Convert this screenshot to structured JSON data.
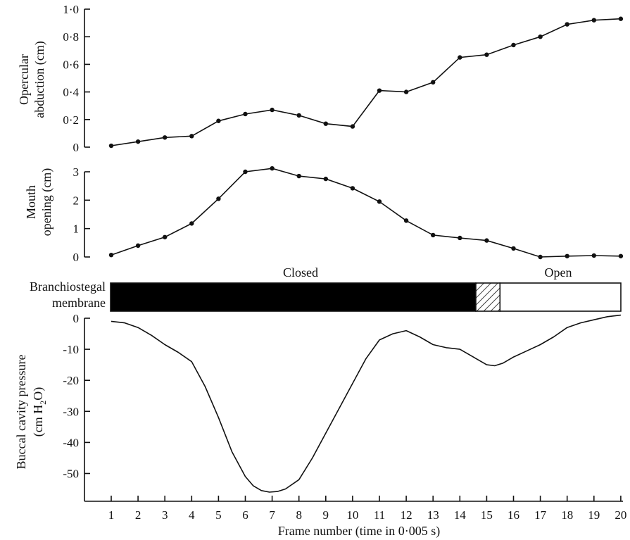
{
  "chart_data": [
    {
      "type": "line",
      "ylabel_lines": [
        "Opercular",
        "abduction (cm)"
      ],
      "ylim": [
        0,
        1.0
      ],
      "ytick_labels": [
        "0",
        "0·2",
        "0·4",
        "0·6",
        "0·8",
        "1·0"
      ],
      "x": [
        1,
        2,
        3,
        4,
        5,
        6,
        7,
        8,
        9,
        10,
        11,
        12,
        13,
        14,
        15,
        16,
        17,
        18,
        19,
        20
      ],
      "values": [
        0.01,
        0.04,
        0.07,
        0.08,
        0.19,
        0.24,
        0.27,
        0.23,
        0.17,
        0.15,
        0.41,
        0.4,
        0.47,
        0.65,
        0.67,
        0.74,
        0.8,
        0.89,
        0.92,
        0.93
      ],
      "markers": true
    },
    {
      "type": "line",
      "ylabel_lines": [
        "Mouth",
        "opening (cm)"
      ],
      "ylim": [
        0,
        3
      ],
      "ytick_labels": [
        "0",
        "1",
        "2",
        "3"
      ],
      "x": [
        1,
        2,
        3,
        4,
        5,
        6,
        7,
        8,
        9,
        10,
        11,
        12,
        13,
        14,
        15,
        16,
        17,
        18,
        19,
        20
      ],
      "values": [
        0.07,
        0.4,
        0.7,
        1.18,
        2.05,
        3.0,
        3.12,
        2.85,
        2.75,
        2.42,
        1.95,
        1.28,
        0.77,
        0.67,
        0.58,
        0.3,
        0.0,
        0.03,
        0.05,
        0.03
      ],
      "markers": true
    },
    {
      "type": "bar",
      "ylabel_lines": [
        "Branchiostegal",
        "membrane"
      ],
      "segments": [
        {
          "label": "Closed",
          "from": 1,
          "to": 14.6,
          "fill": "solid"
        },
        {
          "label": "",
          "from": 14.6,
          "to": 15.5,
          "fill": "hatched"
        },
        {
          "label": "Open",
          "from": 15.5,
          "to": 20,
          "fill": "empty"
        }
      ]
    },
    {
      "type": "line",
      "ylabel_lines": [
        "Buccal cavity pressure",
        "(cm H",
        "2",
        "O)"
      ],
      "ylim": [
        -57,
        0
      ],
      "ytick_labels": [
        "0",
        "-10",
        "-20",
        "-30",
        "-40",
        "-50"
      ],
      "xlim": [
        0.4,
        20.3
      ],
      "x": [
        1,
        1.5,
        2,
        2.5,
        3,
        3.5,
        4,
        4.5,
        5,
        5.5,
        6,
        6.3,
        6.6,
        6.9,
        7.2,
        7.5,
        8,
        8.5,
        9,
        9.5,
        10,
        10.5,
        11,
        11.5,
        12,
        12.5,
        13,
        13.5,
        14,
        14.5,
        15,
        15.3,
        15.6,
        16,
        16.5,
        17,
        17.5,
        18,
        18.5,
        19,
        19.5,
        20
      ],
      "values": [
        -1,
        -1.5,
        -3,
        -5.5,
        -8.5,
        -11,
        -14,
        -22,
        -32,
        -43,
        -51,
        -54,
        -55.5,
        -56,
        -55.8,
        -55,
        -52,
        -45,
        -37,
        -29,
        -21,
        -13,
        -7,
        -5,
        -4,
        -6,
        -8.5,
        -9.5,
        -10,
        -12.5,
        -15,
        -15.3,
        -14.5,
        -12.5,
        -10.5,
        -8.5,
        -6,
        -3,
        -1.5,
        -0.5,
        0.5,
        1
      ],
      "markers": false,
      "xticks": [
        1,
        2,
        3,
        4,
        5,
        6,
        7,
        8,
        9,
        10,
        11,
        12,
        13,
        14,
        15,
        16,
        17,
        18,
        19,
        20
      ],
      "xtick_labels": [
        "1",
        "2",
        "3",
        "4",
        "5",
        "6",
        "7",
        "8",
        "9",
        "10",
        "11",
        "12",
        "13",
        "14",
        "15",
        "16",
        "17",
        "18",
        "19",
        "20"
      ],
      "xlabel": "Frame number  (time in 0·005 s)"
    }
  ]
}
